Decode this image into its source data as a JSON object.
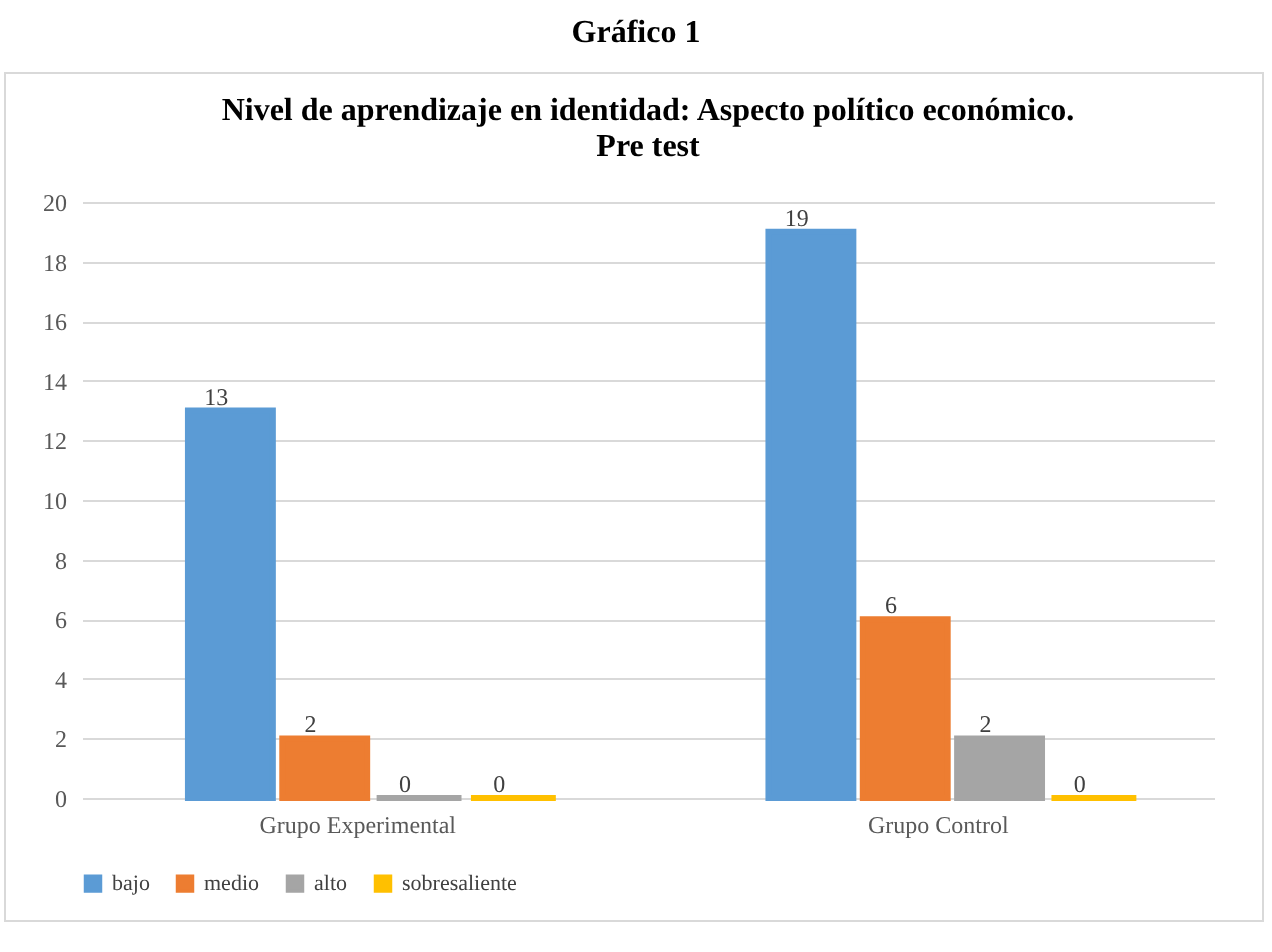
{
  "chart_data": {
    "type": "bar",
    "title": "Nivel de aprendizaje en identidad: Aspecto político económico.",
    "subtitle": "Pre test",
    "annotations": [
      "Gráfico 1"
    ],
    "categories": [
      "Grupo Experimental",
      "Grupo Control"
    ],
    "series": [
      {
        "name": "bajo",
        "color": "#5b9bd5",
        "values": [
          13,
          19
        ]
      },
      {
        "name": "medio",
        "color": "#ed7d31",
        "values": [
          2,
          6
        ]
      },
      {
        "name": "alto",
        "color": "#a5a5a5",
        "values": [
          0,
          2
        ]
      },
      {
        "name": "sobresaliente",
        "color": "#ffc000",
        "values": [
          0,
          0
        ]
      }
    ],
    "ylim": [
      0,
      20
    ],
    "yticks": [
      0,
      2,
      4,
      6,
      8,
      10,
      12,
      14,
      16,
      18,
      20
    ],
    "grid": "y",
    "legend": "bottom",
    "data_labels": true
  }
}
